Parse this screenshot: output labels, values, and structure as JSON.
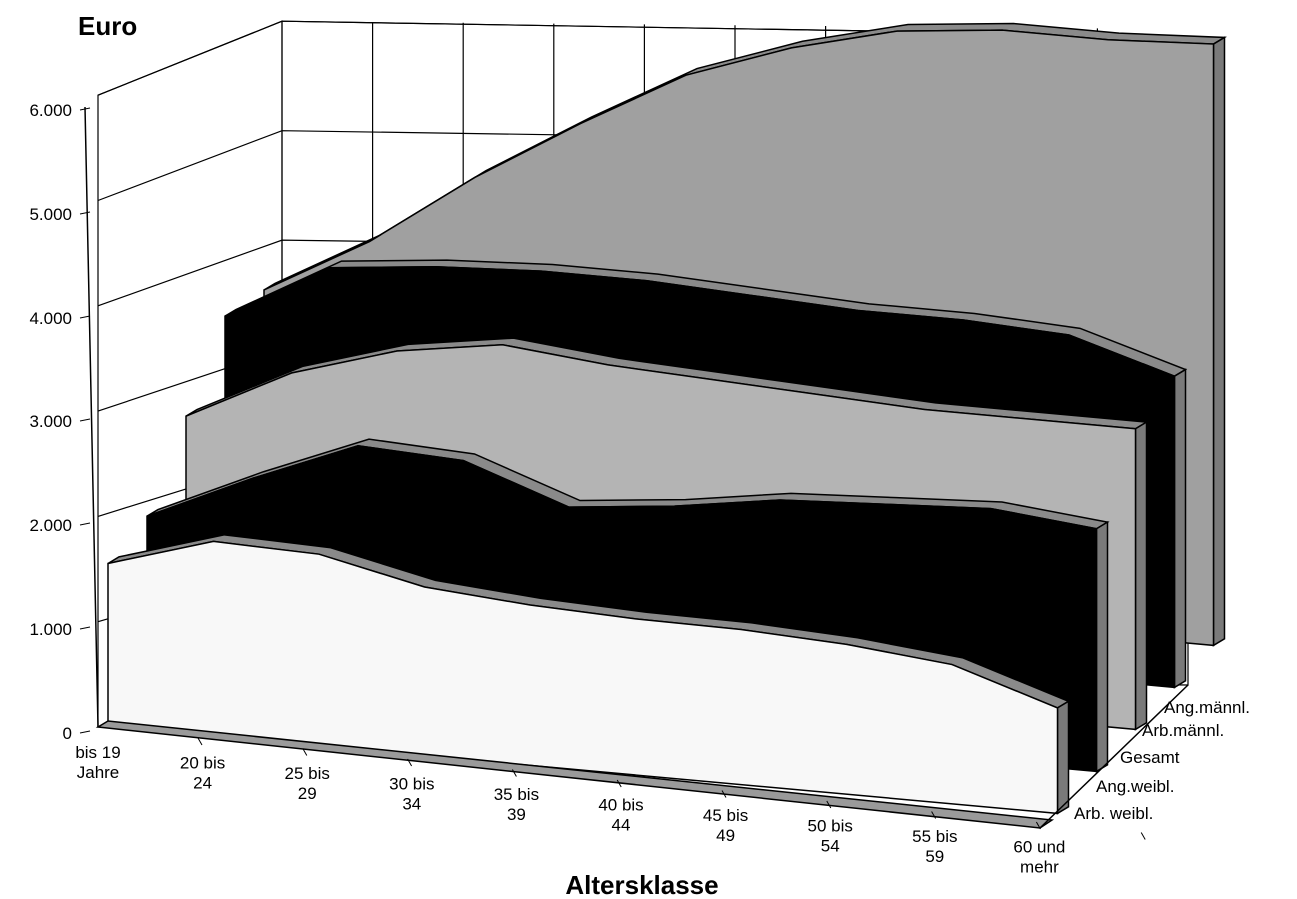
{
  "chart_data": {
    "type": "area",
    "title": "",
    "unit_label": "Euro",
    "xlabel": "Altersklasse",
    "ylabel": "",
    "ylim": [
      0,
      6000
    ],
    "y_ticks": [
      "0",
      "1.000",
      "2.000",
      "3.000",
      "4.000",
      "5.000",
      "6.000"
    ],
    "grid": true,
    "categories": [
      [
        "bis 19",
        "Jahre"
      ],
      [
        "20 bis",
        "24"
      ],
      [
        "25 bis",
        "29"
      ],
      [
        "30 bis",
        "34"
      ],
      [
        "35 bis",
        "39"
      ],
      [
        "40 bis",
        "44"
      ],
      [
        "45 bis",
        "49"
      ],
      [
        "50 bis",
        "54"
      ],
      [
        "55 bis",
        "59"
      ],
      [
        "60 und",
        "mehr"
      ]
    ],
    "series": [
      {
        "name": "Arb. weibl.",
        "color": "#f8f8f8",
        "values": [
          1550,
          1850,
          1820,
          1600,
          1520,
          1480,
          1470,
          1420,
          1320,
          1000
        ]
      },
      {
        "name": "Ang.weibl.",
        "color": "#000000",
        "values": [
          1600,
          2050,
          2450,
          2400,
          2050,
          2150,
          2300,
          2350,
          2400,
          2300
        ]
      },
      {
        "name": "Gesamt",
        "color": "#b4b4b4",
        "values": [
          2150,
          2650,
          2950,
          3100,
          3000,
          2950,
          2900,
          2850,
          2850,
          2850
        ]
      },
      {
        "name": "Arb.männl.",
        "color": "#000000",
        "values": [
          2700,
          3250,
          3350,
          3400,
          3400,
          3350,
          3300,
          3300,
          3250,
          2950
        ]
      },
      {
        "name": "Ang.männl.",
        "color": "#a0a0a0",
        "values": [
          2550,
          3100,
          3800,
          4400,
          4950,
          5300,
          5550,
          5650,
          5650,
          5700
        ]
      }
    ]
  }
}
